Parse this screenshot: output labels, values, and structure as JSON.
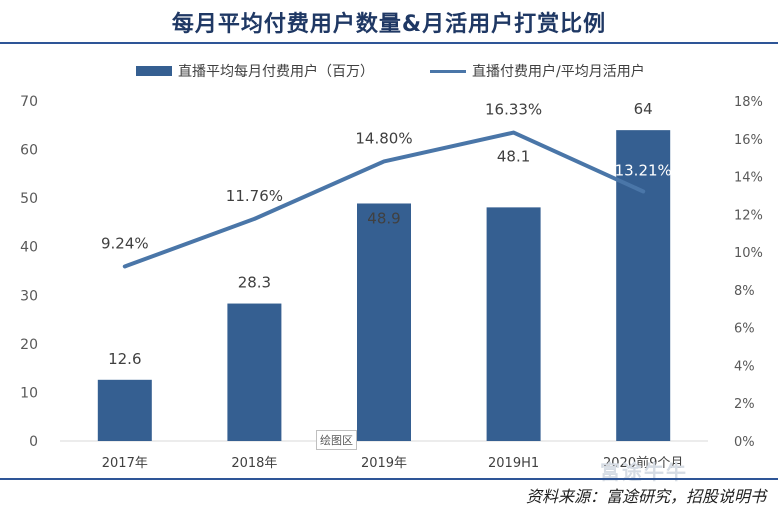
{
  "title": "每月平均付费用户数量&月活用户打赏比例",
  "source": "资料来源：富途研究，招股说明书",
  "plot_tag": "绘图区",
  "watermark": "富途牛牛",
  "colors": {
    "bar": "#355f91",
    "line": "#4a76a8",
    "title": "#1f3864"
  },
  "chart_data": {
    "type": "bar",
    "title": "每月平均付费用户数量&月活用户打赏比例",
    "categories": [
      "2017年",
      "2018年",
      "2019年",
      "2019H1",
      "2020前9个月"
    ],
    "series": [
      {
        "name": "直播平均每月付费用户（百万）",
        "type": "bar",
        "axis": "left",
        "values": [
          12.6,
          28.3,
          48.9,
          48.1,
          64
        ],
        "labels": [
          "12.6",
          "28.3",
          "48.9",
          "48.1",
          "64"
        ]
      },
      {
        "name": "直播付费用户/平均月活用户",
        "type": "line",
        "axis": "right",
        "values": [
          9.24,
          11.76,
          14.8,
          16.33,
          13.21
        ],
        "labels": [
          "9.24%",
          "11.76%",
          "14.80%",
          "16.33%",
          "13.21%"
        ]
      }
    ],
    "ylim": [
      0,
      70
    ],
    "yticks": [
      "0",
      "10",
      "20",
      "30",
      "40",
      "50",
      "60",
      "70"
    ],
    "y2lim": [
      0,
      18
    ],
    "y2ticks": [
      "0%",
      "2%",
      "4%",
      "6%",
      "8%",
      "10%",
      "12%",
      "14%",
      "16%",
      "18%"
    ],
    "grid": false,
    "legend_position": "top"
  }
}
